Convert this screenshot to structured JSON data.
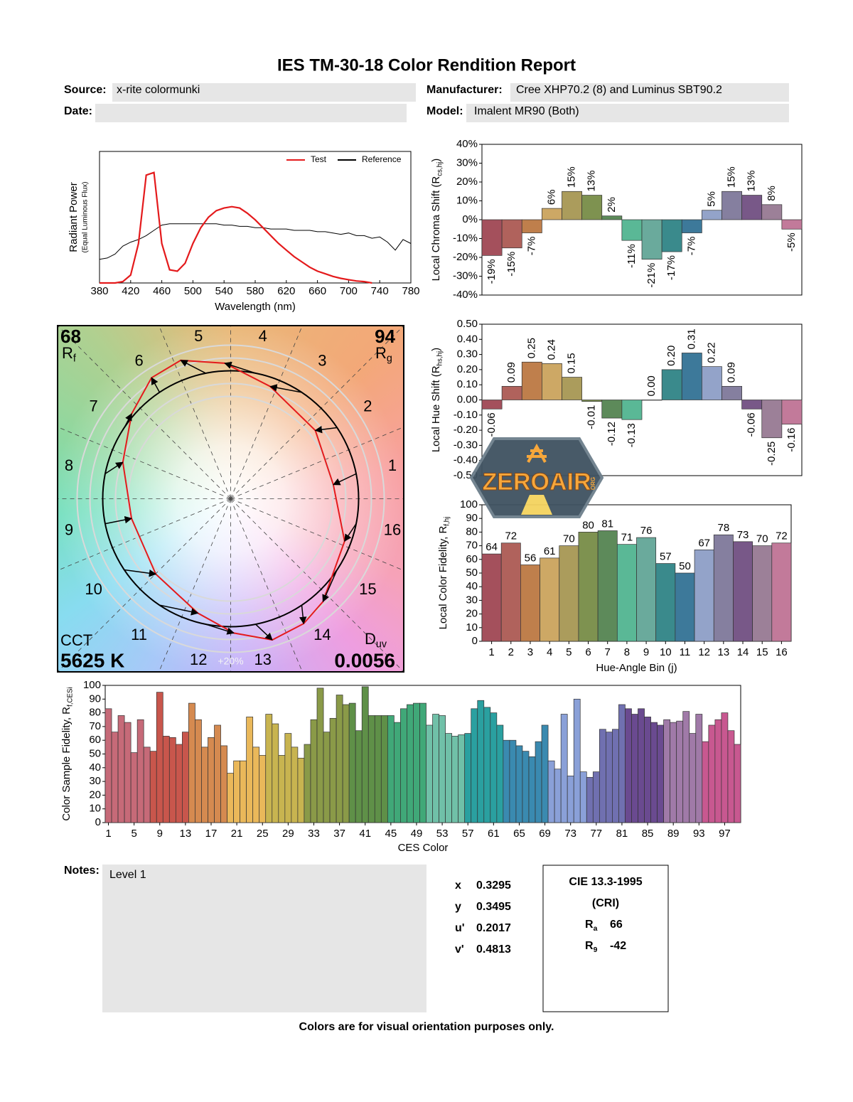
{
  "header": {
    "title": "IES TM-30-18 Color Rendition Report",
    "source_label": "Source:",
    "source": "x-rite colormunki",
    "manufacturer_label": "Manufacturer:",
    "manufacturer": "Cree XHP70.2 (8) and Luminus SBT90.2",
    "date_label": "Date:",
    "model_label": "Model:",
    "model": "Imalent MR90 (Both)"
  },
  "chart_data": [
    {
      "type": "line",
      "x": [
        380,
        390,
        400,
        410,
        420,
        430,
        440,
        450,
        460,
        470,
        480,
        490,
        500,
        510,
        520,
        530,
        540,
        550,
        560,
        570,
        580,
        590,
        600,
        610,
        620,
        630,
        640,
        650,
        660,
        670,
        680,
        690,
        700,
        710,
        720,
        730,
        740,
        750,
        760,
        770,
        780
      ],
      "xlim": [
        380,
        780
      ],
      "xticks": [
        380,
        420,
        460,
        500,
        540,
        580,
        620,
        660,
        700,
        740,
        780
      ],
      "ylim": [
        0,
        1
      ],
      "xlabel": "Wavelength (nm)",
      "ylabel": "Radiant Power",
      "ylabel_sub": "(Equal Luminous Flux)",
      "legend": "upper right",
      "series": [
        {
          "name": "Test",
          "color": "#e41a1c",
          "values": [
            0,
            0,
            0,
            0.01,
            0.06,
            0.3,
            0.82,
            0.84,
            0.3,
            0.1,
            0.09,
            0.15,
            0.3,
            0.42,
            0.5,
            0.55,
            0.57,
            0.58,
            0.57,
            0.53,
            0.48,
            0.42,
            0.36,
            0.3,
            0.25,
            0.2,
            0.16,
            0.12,
            0.09,
            0.07,
            0.05,
            0.035,
            0.025,
            0.015,
            0.01,
            0,
            null,
            null,
            null,
            null,
            null
          ]
        },
        {
          "name": "Reference",
          "color": "#000000",
          "values": [
            0.18,
            0.19,
            0.22,
            0.28,
            0.31,
            0.33,
            0.36,
            0.4,
            0.44,
            0.45,
            0.45,
            0.45,
            0.45,
            0.45,
            0.45,
            0.45,
            0.44,
            0.44,
            0.43,
            0.43,
            0.42,
            0.42,
            0.41,
            0.41,
            0.41,
            0.4,
            0.4,
            0.4,
            0.39,
            0.39,
            0.38,
            0.37,
            0.38,
            0.36,
            0.36,
            0.34,
            0.35,
            0.31,
            0.25,
            0.33,
            0.3
          ]
        }
      ]
    },
    {
      "type": "bar",
      "values": [
        -19,
        -15,
        -7,
        6,
        15,
        13,
        2,
        -11,
        -21,
        -17,
        -7,
        5,
        15,
        13,
        8,
        -5
      ],
      "value_labels": [
        "-19%",
        "-15%",
        "-7%",
        "6%",
        "15%",
        "13%",
        "2%",
        "-11%",
        "-21%",
        "-17%",
        "-7%",
        "5%",
        "15%",
        "13%",
        "8%",
        "-5%"
      ],
      "data_labels": "vertical",
      "colors": [
        "#a4505c",
        "#b0625c",
        "#bf7f4c",
        "#cda865",
        "#ab9c5c",
        "#7e9250",
        "#5d8a5a",
        "#5ab896",
        "#6aaa9c",
        "#3a8a8c",
        "#3d799a",
        "#93a3c9",
        "#857f9f",
        "#785888",
        "#9c8098",
        "#c27a9a"
      ],
      "ylim": [
        -40,
        40
      ],
      "yticks": [
        {
          "value": 40,
          "label": "40%"
        },
        {
          "value": 30,
          "label": "30%"
        },
        {
          "value": 20,
          "label": "20%"
        },
        {
          "value": 10,
          "label": "10%"
        },
        {
          "value": 0,
          "label": "0%"
        },
        {
          "value": -10,
          "label": "-10%"
        },
        {
          "value": -20,
          "label": "-20%"
        },
        {
          "value": -30,
          "label": "-30%"
        },
        {
          "value": -40,
          "label": "-40%"
        }
      ],
      "ylabel": "Local Chroma Shift (R",
      "ylabel_sub": "cs,hj",
      "ylabel_end": ")"
    },
    {
      "type": "bar",
      "values": [
        -0.06,
        0.09,
        0.25,
        0.24,
        0.15,
        -0.01,
        -0.12,
        -0.13,
        0,
        0.2,
        0.31,
        0.22,
        0.09,
        -0.06,
        -0.25,
        -0.16
      ],
      "value_labels": [
        "-0.06",
        "0.09",
        "0.25",
        "0.24",
        "0.15",
        "-0.01",
        "-0.12",
        "-0.13",
        "0.00",
        "0.20",
        "0.31",
        "0.22",
        "0.09",
        "-0.06",
        "-0.25",
        "-0.16"
      ],
      "data_labels": "vertical",
      "colors": [
        "#a4505c",
        "#b0625c",
        "#bf7f4c",
        "#cda865",
        "#ab9c5c",
        "#7e9250",
        "#5d8a5a",
        "#5ab896",
        "#6aaa9c",
        "#3a8a8c",
        "#3d799a",
        "#93a3c9",
        "#857f9f",
        "#785888",
        "#9c8098",
        "#c27a9a"
      ],
      "ylim": [
        -0.5,
        0.5
      ],
      "yticks": [
        {
          "value": 0.5,
          "label": "0.50"
        },
        {
          "value": 0.4,
          "label": "0.40"
        },
        {
          "value": 0.3,
          "label": "0.30"
        },
        {
          "value": 0.2,
          "label": "0.20"
        },
        {
          "value": 0.1,
          "label": "0.10"
        },
        {
          "value": 0,
          "label": "0.00"
        },
        {
          "value": -0.1,
          "label": "-0.10"
        },
        {
          "value": -0.2,
          "label": "-0.20"
        },
        {
          "value": -0.3,
          "label": "-0.30"
        },
        {
          "value": -0.4,
          "label": "-0.40"
        },
        {
          "value": -0.5,
          "label": "-0.50"
        }
      ],
      "ylabel": "Local Hue Shift (R",
      "ylabel_sub": "hs,hj",
      "ylabel_end": ")"
    },
    {
      "type": "bar",
      "categories": [
        1,
        2,
        3,
        4,
        5,
        6,
        7,
        8,
        9,
        10,
        11,
        12,
        13,
        14,
        15,
        16
      ],
      "values": [
        64,
        72,
        56,
        61,
        70,
        80,
        81,
        71,
        76,
        57,
        50,
        67,
        78,
        73,
        70,
        72
      ],
      "data_labels": "horizontal",
      "colors": [
        "#a4505c",
        "#b0625c",
        "#bf7f4c",
        "#cda865",
        "#ab9c5c",
        "#7e9250",
        "#5d8a5a",
        "#5ab896",
        "#6aaa9c",
        "#3a8a8c",
        "#3d799a",
        "#93a3c9",
        "#857f9f",
        "#785888",
        "#9c8098",
        "#c27a9a"
      ],
      "ylim": [
        0,
        100
      ],
      "yticks": [
        0,
        10,
        20,
        30,
        40,
        50,
        60,
        70,
        80,
        90,
        100
      ],
      "xlabel": "Hue-Angle Bin (j)",
      "ylabel": "Local Color Fidelity, R",
      "ylabel_sub": "f,hj"
    },
    {
      "type": "vector",
      "bins": [
        1,
        2,
        3,
        4,
        5,
        6,
        7,
        8,
        9,
        10,
        11,
        12,
        13,
        14,
        15,
        16
      ],
      "rf": 68,
      "rf_symbol": "R",
      "rf_sub": "f",
      "rg": 94,
      "rg_symbol": "R",
      "rg_sub": "g",
      "cct_label": "CCT",
      "cct": "5625 K",
      "duv_symbol": "D",
      "duv_sub": "uv",
      "duv": 0.0056,
      "ring_label": "+20%",
      "test_color": "#e41a1c",
      "reference_color": "#000000"
    },
    {
      "type": "bar",
      "categories": [
        1,
        null,
        null,
        null,
        5,
        null,
        null,
        null,
        9,
        null,
        null,
        null,
        13,
        null,
        null,
        null,
        17,
        null,
        null,
        null,
        21,
        null,
        null,
        null,
        25,
        null,
        null,
        null,
        29,
        null,
        null,
        null,
        33,
        null,
        null,
        null,
        37,
        null,
        null,
        null,
        41,
        null,
        null,
        null,
        45,
        null,
        null,
        null,
        49,
        null,
        null,
        null,
        53,
        null,
        null,
        null,
        57,
        null,
        null,
        null,
        61,
        null,
        null,
        null,
        65,
        null,
        null,
        null,
        69,
        null,
        null,
        null,
        73,
        null,
        null,
        null,
        77,
        null,
        null,
        null,
        81,
        null,
        null,
        null,
        85,
        null,
        null,
        null,
        89,
        null,
        null,
        null,
        93,
        null,
        null,
        null,
        97,
        null,
        null
      ],
      "values": [
        83,
        66,
        78,
        73,
        51,
        75,
        55,
        52,
        95,
        63,
        62,
        57,
        66,
        87,
        75,
        55,
        62,
        71,
        56,
        36,
        45,
        45,
        77,
        55,
        49,
        79,
        72,
        49,
        65,
        55,
        47,
        57,
        75,
        98,
        66,
        76,
        93,
        86,
        87,
        67,
        99,
        78,
        78,
        78,
        78,
        73,
        83,
        86,
        87,
        87,
        71,
        79,
        78,
        65,
        63,
        64,
        65,
        83,
        89,
        84,
        80,
        71,
        60,
        60,
        56,
        52,
        48,
        59,
        71,
        45,
        39,
        79,
        34,
        90,
        37,
        33,
        37,
        68,
        66,
        68,
        86,
        83,
        79,
        83,
        77,
        73,
        71,
        75,
        73,
        74,
        81,
        65,
        79,
        59,
        71,
        75,
        80,
        67,
        57
      ],
      "colors": [
        "#c66a78",
        "#c8564c",
        "#d58a50",
        "#eab85a",
        "#c8b450",
        "#8a9a48",
        "#5f9048",
        "#40a878",
        "#70c0a8",
        "#2aa0a0",
        "#3a8ab0",
        "#8aa0d8",
        "#7070b0",
        "#6a4a90",
        "#a07aa8",
        "#c85890"
      ],
      "ylim": [
        0,
        100
      ],
      "yticks": [
        0,
        10,
        20,
        30,
        40,
        50,
        60,
        70,
        80,
        90,
        100
      ],
      "xlabel": "CES Color",
      "ylabel": "Color Sample Fidelity, R",
      "ylabel_sub": "f,CESi"
    }
  ],
  "notes": {
    "label": "Notes:",
    "text": "Level 1"
  },
  "chromaticity": {
    "rows": [
      [
        "x",
        0.3295
      ],
      [
        "y",
        0.3495
      ],
      [
        "u'",
        0.2017
      ],
      [
        "v'",
        0.4813
      ]
    ]
  },
  "cri": {
    "title": "CIE 13.3-1995",
    "subtitle": "(CRI)",
    "rows": [
      {
        "label": "R",
        "sub": "a",
        "value": 66
      },
      {
        "label": "R",
        "sub": "9",
        "value": -42
      }
    ]
  },
  "watermark": {
    "text": "ZEROAIR",
    "sub": "ORG"
  },
  "footer": "Colors are for visual orientation purposes only."
}
